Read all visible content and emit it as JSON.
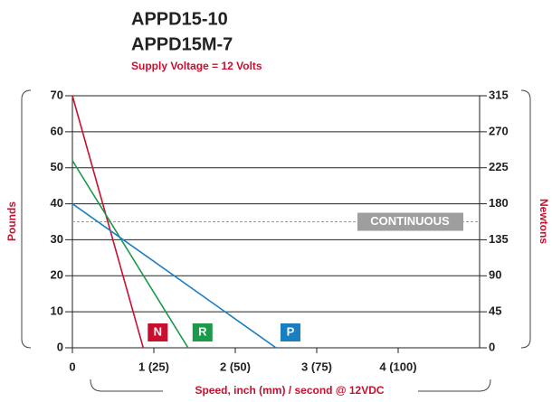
{
  "chart_data": {
    "type": "line",
    "title": "APPD15-10",
    "subtitle": "APPD15M-7",
    "note": "Supply Voltage = 12 Volts",
    "y_label": "Pounds",
    "y2_label": "Newtons",
    "x_label": "Speed, inch (mm) / second @ 12VDC",
    "xlim": [
      0,
      5
    ],
    "xticks": [
      0,
      {
        "value": 1,
        "label": "1 (25)"
      },
      {
        "value": 2,
        "label": "2 (50)"
      },
      {
        "value": 3,
        "label": "3 (75)"
      },
      {
        "value": 4,
        "label": "4 (100)"
      }
    ],
    "ylim": [
      0,
      70
    ],
    "yticks": [
      0,
      10,
      20,
      30,
      40,
      50,
      60,
      70
    ],
    "y2lim": [
      0,
      315
    ],
    "y2ticks": [
      0,
      45,
      90,
      135,
      180,
      225,
      270,
      315
    ],
    "grid": true,
    "series": [
      {
        "name": "N",
        "color": "#c8102e",
        "x": [
          0,
          0.87
        ],
        "values": [
          70,
          0
        ]
      },
      {
        "name": "R",
        "color": "#1a9a4a",
        "x": [
          0,
          1.42
        ],
        "values": [
          52,
          0
        ]
      },
      {
        "name": "P",
        "color": "#1a7fc1",
        "x": [
          0,
          2.5
        ],
        "values": [
          40,
          0
        ]
      }
    ],
    "annotation": {
      "text": "CONTINUOUS",
      "y": 35
    }
  }
}
